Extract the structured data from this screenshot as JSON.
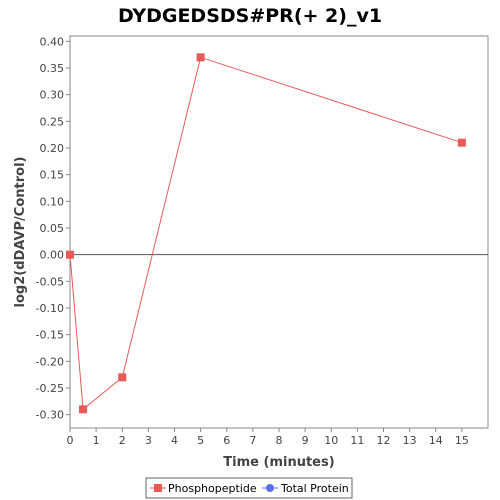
{
  "chart_data": {
    "type": "line",
    "title": "DYDGEDSDS#PR(+ 2)_v1",
    "xlabel": "Time (minutes)",
    "ylabel": "log2(dDAVP/Control)",
    "xlim": [
      0,
      16
    ],
    "ylim": [
      -0.325,
      0.41
    ],
    "xticks": [
      0,
      1,
      2,
      3,
      4,
      5,
      6,
      7,
      8,
      9,
      10,
      11,
      12,
      13,
      14,
      15
    ],
    "yticks": [
      -0.3,
      -0.25,
      -0.2,
      -0.15,
      -0.1,
      -0.05,
      0.0,
      0.05,
      0.1,
      0.15,
      0.2,
      0.25,
      0.3,
      0.35,
      0.4
    ],
    "grid": false,
    "zero_line": true,
    "legend_position": "bottom",
    "series": [
      {
        "name": "Phosphopeptide",
        "color": "#e85a5a",
        "marker": "square",
        "x": [
          0,
          0.5,
          2,
          5,
          15
        ],
        "y": [
          0.0,
          -0.29,
          -0.23,
          0.37,
          0.21
        ]
      },
      {
        "name": "Total Protein",
        "color": "#5a6ee8",
        "marker": "circle",
        "x": [],
        "y": []
      }
    ]
  }
}
